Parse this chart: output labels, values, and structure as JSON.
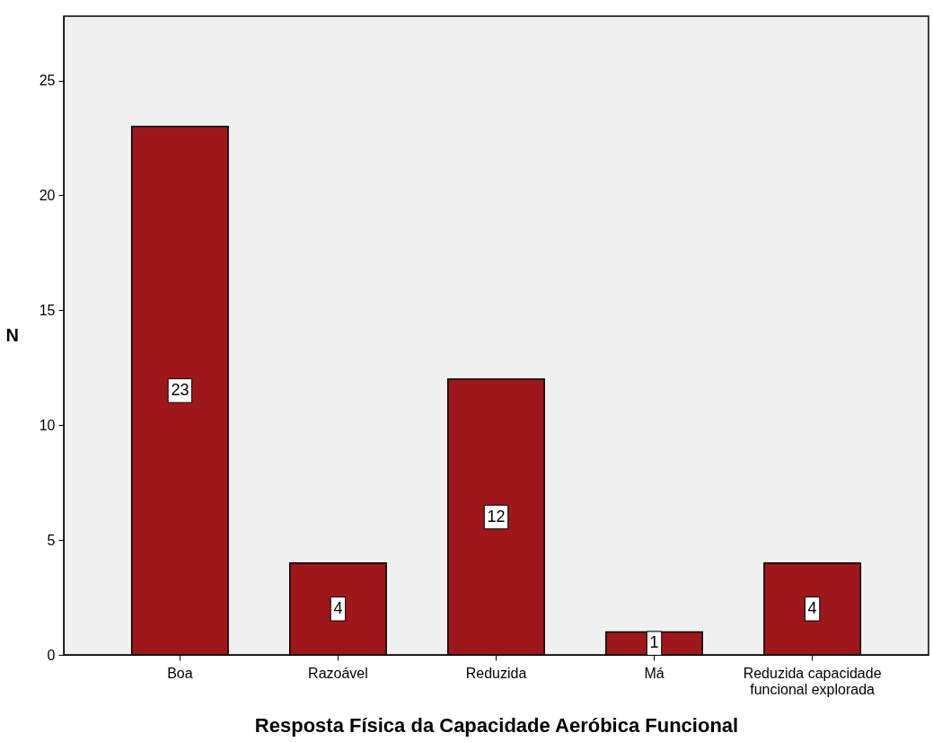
{
  "chart_data": {
    "type": "bar",
    "xlabel": "Resposta Física da Capacidade Aeróbica Funcional",
    "ylabel": "N",
    "categories": [
      "Boa",
      "Razoável",
      "Reduzida",
      "Má",
      "Reduzida capacidade funcional explorada"
    ],
    "values": [
      23,
      4,
      12,
      1,
      4
    ],
    "color": "#9e171b",
    "ylim": [
      0,
      27.8
    ],
    "yticks": [
      0,
      5,
      10,
      15,
      20,
      25
    ],
    "data_labels": true
  }
}
